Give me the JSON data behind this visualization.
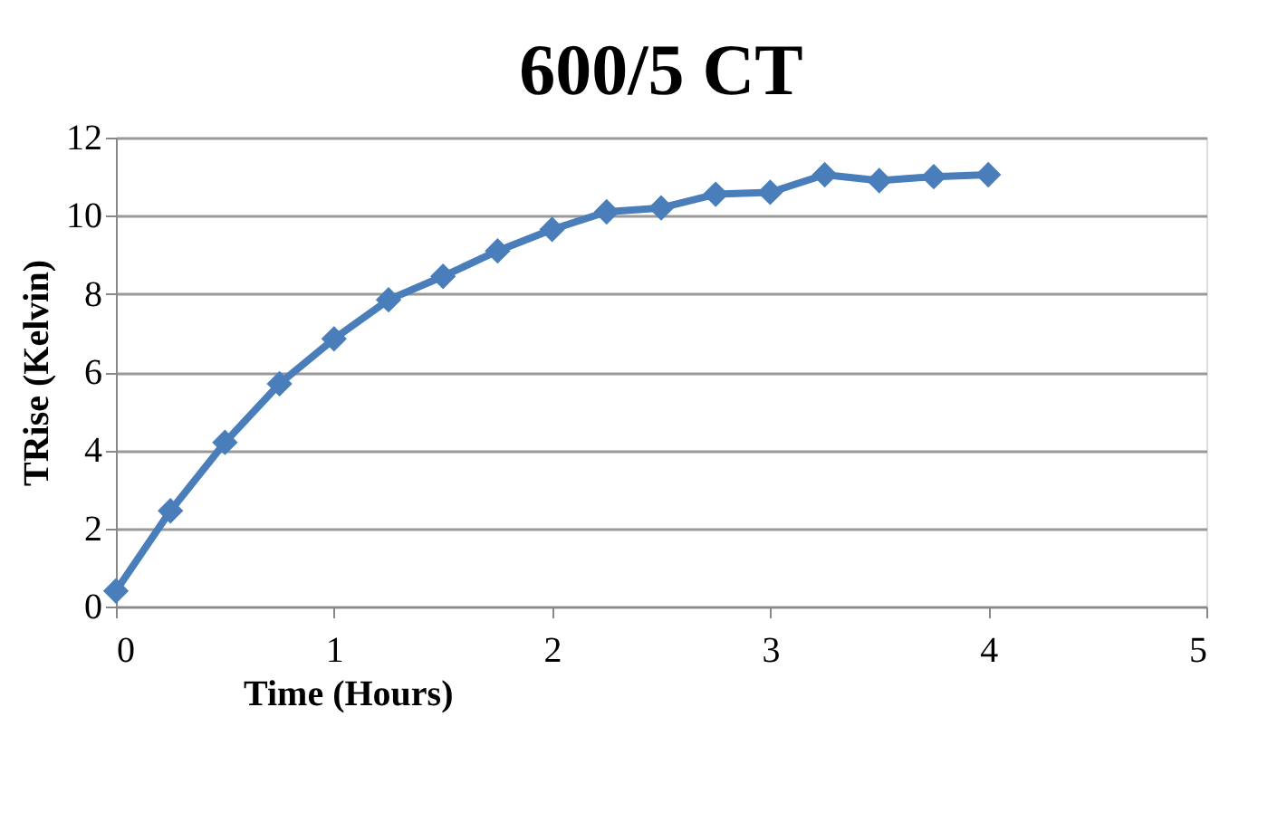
{
  "chart_data": {
    "type": "line",
    "title": "600/5 CT",
    "xlabel": "Time (Hours)",
    "ylabel": "TRise (Kelvin)",
    "x": [
      0,
      0.25,
      0.5,
      0.75,
      1,
      1.25,
      1.5,
      1.75,
      2,
      2.25,
      2.5,
      2.75,
      3,
      3.25,
      3.5,
      3.75,
      4
    ],
    "series": [
      {
        "color": "#4a7ebb",
        "values": [
          0.4,
          2.45,
          4.2,
          5.7,
          6.85,
          7.85,
          8.45,
          9.1,
          9.65,
          10.1,
          10.2,
          10.55,
          10.6,
          11.05,
          10.9,
          11.0,
          11.05
        ]
      }
    ],
    "xlim": [
      0,
      5
    ],
    "xticks": [
      0,
      1,
      2,
      3,
      4,
      5
    ],
    "ylim": [
      0,
      12
    ],
    "yticks": [
      0,
      2,
      4,
      6,
      8,
      10,
      12
    ],
    "grid": "y",
    "marker": "diamond",
    "line_style": "solid"
  }
}
